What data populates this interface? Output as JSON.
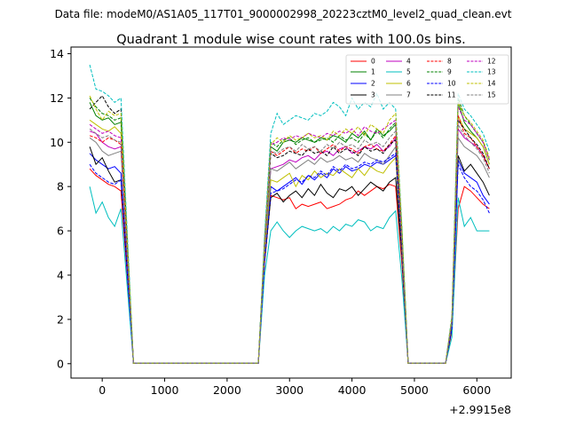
{
  "chart_data": {
    "type": "line",
    "suptitle": "Data file: modeM0/AS1A05_117T01_9000002998_20223cztM0_level2_quad_clean.evt",
    "title": "Quadrant 1 module wise count rates with 100.0s bins.",
    "xlabel": "",
    "ylabel": "",
    "x_offset_label": "+2.9915e8",
    "xlim": [
      -500,
      6550
    ],
    "ylim": [
      -0.65,
      14.3
    ],
    "xticks": [
      0,
      1000,
      2000,
      3000,
      4000,
      5000,
      6000
    ],
    "yticks": [
      0,
      2,
      4,
      6,
      8,
      10,
      12,
      14
    ],
    "legend_position": "top-right",
    "x": [
      -200,
      -100,
      0,
      100,
      200,
      300,
      400,
      500,
      600,
      700,
      800,
      900,
      1000,
      1100,
      1200,
      1300,
      1400,
      1500,
      1600,
      1700,
      1800,
      1900,
      2000,
      2100,
      2200,
      2300,
      2400,
      2500,
      2600,
      2700,
      2800,
      2900,
      3000,
      3100,
      3200,
      3300,
      3400,
      3500,
      3600,
      3700,
      3800,
      3900,
      4000,
      4100,
      4200,
      4300,
      4400,
      4500,
      4600,
      4700,
      4800,
      4900,
      5000,
      5100,
      5200,
      5300,
      5400,
      5500,
      5600,
      5700,
      5800,
      5900,
      6000,
      6100,
      6200
    ],
    "series": [
      {
        "name": "0",
        "color": "#ff0000",
        "dash": "solid",
        "values": [
          8.8,
          8.5,
          8.3,
          8.1,
          8.0,
          7.8,
          4.0,
          0.02,
          0.02,
          0.02,
          0.02,
          0.02,
          0.02,
          0.02,
          0.02,
          0.02,
          0.02,
          0.02,
          0.02,
          0.02,
          0.02,
          0.02,
          0.02,
          0.02,
          0.02,
          0.02,
          0.02,
          0.02,
          4.5,
          7.6,
          7.5,
          7.4,
          7.5,
          7.0,
          7.2,
          7.1,
          7.2,
          7.3,
          7.0,
          7.1,
          7.2,
          7.4,
          7.5,
          7.8,
          7.6,
          7.8,
          8.0,
          7.9,
          8.1,
          8.0,
          4.5,
          0.02,
          0.02,
          0.02,
          0.02,
          0.02,
          0.02,
          0.02,
          1.5,
          7.0,
          8.0,
          7.8,
          7.5,
          7.2,
          7.0
        ]
      },
      {
        "name": "1",
        "color": "#008000",
        "dash": "solid",
        "values": [
          11.8,
          11.2,
          11.0,
          11.1,
          10.8,
          10.9,
          5.5,
          0.02,
          0.02,
          0.02,
          0.02,
          0.02,
          0.02,
          0.02,
          0.02,
          0.02,
          0.02,
          0.02,
          0.02,
          0.02,
          0.02,
          0.02,
          0.02,
          0.02,
          0.02,
          0.02,
          0.02,
          0.02,
          5.5,
          9.8,
          9.6,
          10.0,
          10.1,
          10.0,
          10.2,
          10.1,
          10.0,
          10.2,
          10.1,
          10.3,
          10.2,
          10.0,
          10.4,
          10.2,
          10.5,
          10.1,
          10.6,
          10.3,
          10.5,
          10.8,
          6.0,
          0.02,
          0.02,
          0.02,
          0.02,
          0.02,
          0.02,
          0.02,
          2.0,
          11.8,
          10.9,
          10.5,
          10.2,
          9.8,
          9.0
        ]
      },
      {
        "name": "2",
        "color": "#0000ff",
        "dash": "solid",
        "values": [
          9.5,
          9.2,
          9.0,
          8.8,
          8.9,
          8.6,
          4.2,
          0.02,
          0.02,
          0.02,
          0.02,
          0.02,
          0.02,
          0.02,
          0.02,
          0.02,
          0.02,
          0.02,
          0.02,
          0.02,
          0.02,
          0.02,
          0.02,
          0.02,
          0.02,
          0.02,
          0.02,
          0.02,
          4.8,
          8.0,
          7.8,
          8.0,
          8.2,
          8.4,
          8.1,
          8.5,
          8.3,
          8.6,
          8.4,
          8.8,
          8.6,
          8.9,
          8.7,
          8.8,
          9.0,
          8.9,
          9.1,
          9.0,
          9.2,
          9.4,
          5.0,
          0.02,
          0.02,
          0.02,
          0.02,
          0.02,
          0.02,
          0.02,
          1.8,
          9.2,
          8.6,
          8.4,
          8.2,
          7.6,
          7.2
        ]
      },
      {
        "name": "3",
        "color": "#000000",
        "dash": "solid",
        "values": [
          9.8,
          9.0,
          9.3,
          8.7,
          8.2,
          8.3,
          4.3,
          0.02,
          0.02,
          0.02,
          0.02,
          0.02,
          0.02,
          0.02,
          0.02,
          0.02,
          0.02,
          0.02,
          0.02,
          0.02,
          0.02,
          0.02,
          0.02,
          0.02,
          0.02,
          0.02,
          0.02,
          0.02,
          4.6,
          7.5,
          7.7,
          7.3,
          7.6,
          7.8,
          7.5,
          7.9,
          7.6,
          8.1,
          7.7,
          7.5,
          7.9,
          7.8,
          8.0,
          7.6,
          7.9,
          8.2,
          8.0,
          7.8,
          8.2,
          8.4,
          4.8,
          0.02,
          0.02,
          0.02,
          0.02,
          0.02,
          0.02,
          0.02,
          1.6,
          9.4,
          8.7,
          9.0,
          8.6,
          8.2,
          7.6
        ]
      },
      {
        "name": "4",
        "color": "#bf00bf",
        "dash": "solid",
        "values": [
          10.5,
          10.4,
          10.0,
          9.8,
          9.7,
          9.8,
          4.9,
          0.02,
          0.02,
          0.02,
          0.02,
          0.02,
          0.02,
          0.02,
          0.02,
          0.02,
          0.02,
          0.02,
          0.02,
          0.02,
          0.02,
          0.02,
          0.02,
          0.02,
          0.02,
          0.02,
          0.02,
          0.02,
          5.0,
          8.8,
          8.9,
          9.0,
          9.2,
          9.1,
          9.3,
          9.4,
          9.2,
          9.5,
          9.6,
          9.4,
          9.7,
          9.8,
          9.5,
          9.6,
          9.8,
          9.7,
          9.9,
          9.6,
          9.8,
          10.2,
          5.2,
          0.02,
          0.02,
          0.02,
          0.02,
          0.02,
          0.02,
          0.02,
          1.8,
          10.6,
          10.2,
          10.0,
          9.8,
          9.4,
          8.8
        ]
      },
      {
        "name": "5",
        "color": "#00bfbf",
        "dash": "solid",
        "values": [
          8.0,
          6.8,
          7.3,
          6.6,
          6.2,
          7.0,
          3.5,
          0.02,
          0.02,
          0.02,
          0.02,
          0.02,
          0.02,
          0.02,
          0.02,
          0.02,
          0.02,
          0.02,
          0.02,
          0.02,
          0.02,
          0.02,
          0.02,
          0.02,
          0.02,
          0.02,
          0.02,
          0.02,
          4.0,
          6.0,
          6.4,
          6.0,
          5.7,
          6.0,
          6.2,
          6.1,
          6.0,
          6.1,
          5.9,
          6.2,
          6.0,
          6.3,
          6.2,
          6.5,
          6.4,
          6.0,
          6.2,
          6.1,
          6.6,
          6.9,
          3.8,
          0.02,
          0.02,
          0.02,
          0.02,
          0.02,
          0.02,
          0.02,
          1.2,
          7.5,
          6.2,
          6.6,
          6.0,
          6.0,
          6.0
        ]
      },
      {
        "name": "6",
        "color": "#bfbf00",
        "dash": "solid",
        "values": [
          11.0,
          10.8,
          10.6,
          10.5,
          10.7,
          10.4,
          5.2,
          0.02,
          0.02,
          0.02,
          0.02,
          0.02,
          0.02,
          0.02,
          0.02,
          0.02,
          0.02,
          0.02,
          0.02,
          0.02,
          0.02,
          0.02,
          0.02,
          0.02,
          0.02,
          0.02,
          0.02,
          0.02,
          4.8,
          8.3,
          8.2,
          8.4,
          8.6,
          8.0,
          8.5,
          8.3,
          8.7,
          8.4,
          8.6,
          8.5,
          8.8,
          8.6,
          8.4,
          8.8,
          8.5,
          8.9,
          8.7,
          8.6,
          9.0,
          9.3,
          5.0,
          0.02,
          0.02,
          0.02,
          0.02,
          0.02,
          0.02,
          0.02,
          1.8,
          11.2,
          10.6,
          10.4,
          10.2,
          9.8,
          9.0
        ]
      },
      {
        "name": "7",
        "color": "#808080",
        "dash": "solid",
        "values": [
          10.2,
          10.0,
          9.6,
          9.4,
          9.5,
          9.6,
          4.8,
          0.02,
          0.02,
          0.02,
          0.02,
          0.02,
          0.02,
          0.02,
          0.02,
          0.02,
          0.02,
          0.02,
          0.02,
          0.02,
          0.02,
          0.02,
          0.02,
          0.02,
          0.02,
          0.02,
          0.02,
          0.02,
          5.0,
          8.8,
          8.7,
          8.9,
          9.1,
          8.8,
          9.0,
          9.2,
          9.0,
          9.3,
          9.1,
          9.2,
          9.4,
          9.2,
          9.3,
          9.1,
          9.5,
          9.3,
          9.2,
          9.0,
          9.4,
          9.8,
          5.0,
          0.02,
          0.02,
          0.02,
          0.02,
          0.02,
          0.02,
          0.02,
          1.8,
          10.2,
          9.8,
          9.6,
          9.4,
          9.0,
          8.4
        ]
      },
      {
        "name": "8",
        "color": "#ff0000",
        "dash": "dashed",
        "values": [
          10.3,
          10.2,
          10.0,
          10.2,
          10.1,
          9.9,
          5.0,
          0.02,
          0.02,
          0.02,
          0.02,
          0.02,
          0.02,
          0.02,
          0.02,
          0.02,
          0.02,
          0.02,
          0.02,
          0.02,
          0.02,
          0.02,
          0.02,
          0.02,
          0.02,
          0.02,
          0.02,
          0.02,
          5.2,
          9.6,
          9.4,
          9.6,
          9.8,
          9.5,
          9.7,
          9.6,
          9.8,
          9.5,
          9.7,
          9.9,
          9.6,
          9.8,
          9.7,
          9.5,
          9.8,
          9.9,
          9.7,
          9.6,
          9.9,
          10.3,
          5.4,
          0.02,
          0.02,
          0.02,
          0.02,
          0.02,
          0.02,
          0.02,
          2.0,
          11.2,
          10.4,
          10.2,
          9.8,
          9.4,
          8.8
        ]
      },
      {
        "name": "9",
        "color": "#008000",
        "dash": "dashed",
        "values": [
          12.0,
          11.6,
          11.3,
          11.2,
          11.0,
          11.1,
          5.5,
          0.02,
          0.02,
          0.02,
          0.02,
          0.02,
          0.02,
          0.02,
          0.02,
          0.02,
          0.02,
          0.02,
          0.02,
          0.02,
          0.02,
          0.02,
          0.02,
          0.02,
          0.02,
          0.02,
          0.02,
          0.02,
          5.6,
          10.0,
          9.8,
          10.1,
          10.2,
          9.9,
          10.1,
          10.2,
          10.0,
          10.1,
          10.2,
          10.0,
          10.3,
          10.1,
          10.2,
          10.0,
          10.4,
          10.1,
          10.5,
          10.2,
          10.6,
          10.9,
          6.0,
          0.02,
          0.02,
          0.02,
          0.02,
          0.02,
          0.02,
          0.02,
          2.0,
          12.0,
          11.2,
          10.8,
          10.4,
          10.0,
          9.2
        ]
      },
      {
        "name": "10",
        "color": "#0000ff",
        "dash": "dashed",
        "values": [
          9.0,
          8.6,
          8.4,
          8.2,
          8.1,
          8.3,
          4.2,
          0.02,
          0.02,
          0.02,
          0.02,
          0.02,
          0.02,
          0.02,
          0.02,
          0.02,
          0.02,
          0.02,
          0.02,
          0.02,
          0.02,
          0.02,
          0.02,
          0.02,
          0.02,
          0.02,
          0.02,
          0.02,
          4.6,
          7.7,
          7.8,
          7.9,
          8.1,
          8.3,
          8.2,
          8.5,
          8.4,
          8.7,
          8.5,
          8.9,
          8.7,
          9.0,
          8.8,
          8.9,
          9.1,
          9.0,
          9.2,
          9.1,
          9.3,
          9.5,
          5.0,
          0.02,
          0.02,
          0.02,
          0.02,
          0.02,
          0.02,
          0.02,
          1.6,
          9.0,
          8.4,
          8.0,
          7.8,
          7.4,
          6.8
        ]
      },
      {
        "name": "11",
        "color": "#000000",
        "dash": "dashed",
        "values": [
          11.5,
          11.8,
          12.1,
          11.6,
          11.3,
          11.5,
          5.7,
          0.02,
          0.02,
          0.02,
          0.02,
          0.02,
          0.02,
          0.02,
          0.02,
          0.02,
          0.02,
          0.02,
          0.02,
          0.02,
          0.02,
          0.02,
          0.02,
          0.02,
          0.02,
          0.02,
          0.02,
          0.02,
          5.5,
          9.5,
          9.3,
          9.4,
          9.6,
          9.5,
          9.4,
          9.7,
          9.5,
          9.6,
          9.4,
          9.8,
          9.5,
          9.7,
          9.6,
          9.4,
          9.8,
          9.6,
          9.7,
          9.5,
          9.9,
          10.1,
          5.2,
          0.02,
          0.02,
          0.02,
          0.02,
          0.02,
          0.02,
          0.02,
          1.9,
          11.0,
          10.6,
          10.2,
          9.9,
          9.5,
          8.8
        ]
      },
      {
        "name": "12",
        "color": "#bf00bf",
        "dash": "dashed",
        "values": [
          10.8,
          10.6,
          10.4,
          10.5,
          10.3,
          10.2,
          5.0,
          0.02,
          0.02,
          0.02,
          0.02,
          0.02,
          0.02,
          0.02,
          0.02,
          0.02,
          0.02,
          0.02,
          0.02,
          0.02,
          0.02,
          0.02,
          0.02,
          0.02,
          0.02,
          0.02,
          0.02,
          0.02,
          5.4,
          9.9,
          10.0,
          10.2,
          10.1,
          10.3,
          10.2,
          10.4,
          10.3,
          10.2,
          10.4,
          10.3,
          10.5,
          10.4,
          10.6,
          10.3,
          10.7,
          10.5,
          10.4,
          10.6,
          10.8,
          11.0,
          5.6,
          0.02,
          0.02,
          0.02,
          0.02,
          0.02,
          0.02,
          0.02,
          2.0,
          11.6,
          11.0,
          10.8,
          10.4,
          10.0,
          9.2
        ]
      },
      {
        "name": "13",
        "color": "#00bfbf",
        "dash": "dashed",
        "values": [
          13.5,
          12.4,
          12.3,
          12.1,
          11.8,
          12.0,
          6.0,
          0.02,
          0.02,
          0.02,
          0.02,
          0.02,
          0.02,
          0.02,
          0.02,
          0.02,
          0.02,
          0.02,
          0.02,
          0.02,
          0.02,
          0.02,
          0.02,
          0.02,
          0.02,
          0.02,
          0.02,
          0.02,
          5.8,
          10.4,
          11.3,
          10.8,
          11.0,
          11.2,
          11.1,
          11.0,
          11.3,
          11.2,
          11.4,
          11.8,
          11.6,
          11.2,
          12.0,
          11.5,
          11.8,
          11.6,
          12.2,
          11.5,
          11.8,
          11.5,
          6.2,
          0.02,
          0.02,
          0.02,
          0.02,
          0.02,
          0.02,
          0.02,
          2.2,
          12.2,
          11.5,
          11.2,
          10.8,
          10.4,
          9.6
        ]
      },
      {
        "name": "14",
        "color": "#bfbf00",
        "dash": "dashed",
        "values": [
          12.1,
          11.5,
          11.0,
          11.4,
          11.2,
          11.3,
          5.6,
          0.02,
          0.02,
          0.02,
          0.02,
          0.02,
          0.02,
          0.02,
          0.02,
          0.02,
          0.02,
          0.02,
          0.02,
          0.02,
          0.02,
          0.02,
          0.02,
          0.02,
          0.02,
          0.02,
          0.02,
          0.02,
          5.5,
          9.9,
          10.2,
          10.0,
          10.3,
          10.1,
          10.2,
          10.4,
          10.2,
          10.3,
          10.1,
          10.5,
          10.3,
          10.6,
          10.4,
          10.7,
          10.3,
          10.8,
          10.6,
          10.4,
          11.0,
          11.3,
          6.0,
          0.02,
          0.02,
          0.02,
          0.02,
          0.02,
          0.02,
          0.02,
          2.1,
          11.8,
          11.2,
          10.9,
          10.5,
          10.1,
          9.3
        ]
      },
      {
        "name": "15",
        "color": "#808080",
        "dash": "dashed",
        "values": [
          10.6,
          10.4,
          10.2,
          10.3,
          10.1,
          10.0,
          5.0,
          0.02,
          0.02,
          0.02,
          0.02,
          0.02,
          0.02,
          0.02,
          0.02,
          0.02,
          0.02,
          0.02,
          0.02,
          0.02,
          0.02,
          0.02,
          0.02,
          0.02,
          0.02,
          0.02,
          0.02,
          0.02,
          5.2,
          9.6,
          9.5,
          9.7,
          9.8,
          9.6,
          9.9,
          9.7,
          9.8,
          9.6,
          9.9,
          9.7,
          10.0,
          9.8,
          9.9,
          9.7,
          10.1,
          9.9,
          10.0,
          9.8,
          10.2,
          10.5,
          5.4,
          0.02,
          0.02,
          0.02,
          0.02,
          0.02,
          0.02,
          0.02,
          1.9,
          10.8,
          10.3,
          10.0,
          9.7,
          9.3,
          8.6
        ]
      }
    ]
  }
}
